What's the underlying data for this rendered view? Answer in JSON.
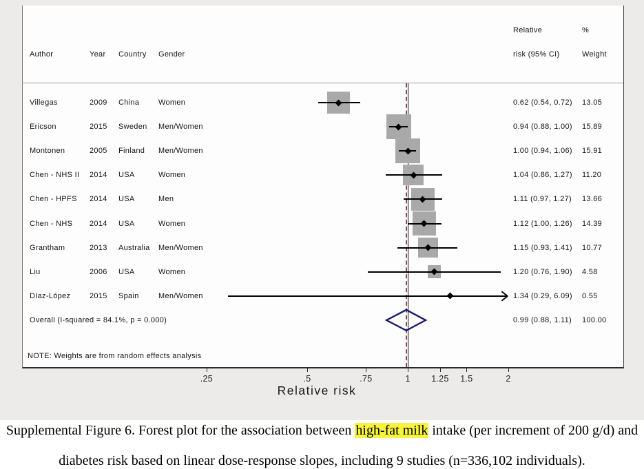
{
  "figure": {
    "header": {
      "author": "Author",
      "year": "Year",
      "country": "Country",
      "gender": "Gender",
      "rr_line1": "Relative",
      "rr_line2": "risk (95% CI)",
      "weight_line1": "%",
      "weight_line2": "Weight"
    },
    "note": "NOTE: Weights are from random effects analysis",
    "axis": {
      "label": "Relative risk",
      "ticks": [
        {
          "v": 0.25,
          "label": ".25"
        },
        {
          "v": 0.5,
          "label": ".5"
        },
        {
          "v": 0.75,
          "label": ".75"
        },
        {
          "v": 1,
          "label": "1"
        },
        {
          "v": 1.25,
          "label": "1.25"
        },
        {
          "v": 1.5,
          "label": "1.5"
        },
        {
          "v": 2,
          "label": "2"
        }
      ]
    }
  },
  "chart_data": {
    "type": "forest",
    "x_scale": "log",
    "ref_line": 1.0,
    "overall_line": 0.99,
    "columns": [
      "Author",
      "Year",
      "Country",
      "Gender",
      "Relative risk (95% CI)",
      "% Weight"
    ],
    "studies": [
      {
        "author": "Villegas",
        "year": "2009",
        "country": "China",
        "gender": "Women",
        "rr": 0.62,
        "ci_low": 0.54,
        "ci_high": 0.72,
        "rr_text": "0.62 (0.54, 0.72)",
        "weight": 13.05,
        "weight_text": "13.05"
      },
      {
        "author": "Ericson",
        "year": "2015",
        "country": "Sweden",
        "gender": "Men/Women",
        "rr": 0.94,
        "ci_low": 0.88,
        "ci_high": 1.0,
        "rr_text": "0.94 (0.88, 1.00)",
        "weight": 15.89,
        "weight_text": "15.89"
      },
      {
        "author": "Montonen",
        "year": "2005",
        "country": "Finland",
        "gender": "Men/Women",
        "rr": 1.0,
        "ci_low": 0.94,
        "ci_high": 1.06,
        "rr_text": "1.00 (0.94, 1.06)",
        "weight": 15.91,
        "weight_text": "15.91"
      },
      {
        "author": "Chen - NHS II",
        "year": "2014",
        "country": "USA",
        "gender": "Women",
        "rr": 1.04,
        "ci_low": 0.86,
        "ci_high": 1.27,
        "rr_text": "1.04 (0.86, 1.27)",
        "weight": 11.2,
        "weight_text": "11.20"
      },
      {
        "author": "Chen - HPFS",
        "year": "2014",
        "country": "USA",
        "gender": "Men",
        "rr": 1.11,
        "ci_low": 0.97,
        "ci_high": 1.27,
        "rr_text": "1.11 (0.97, 1.27)",
        "weight": 13.66,
        "weight_text": "13.66"
      },
      {
        "author": "Chen - NHS",
        "year": "2014",
        "country": "USA",
        "gender": "Women",
        "rr": 1.12,
        "ci_low": 1.0,
        "ci_high": 1.26,
        "rr_text": "1.12 (1.00, 1.26)",
        "weight": 14.39,
        "weight_text": "14.39"
      },
      {
        "author": "Grantham",
        "year": "2013",
        "country": "Australia",
        "gender": "Men/Women",
        "rr": 1.15,
        "ci_low": 0.93,
        "ci_high": 1.41,
        "rr_text": "1.15 (0.93, 1.41)",
        "weight": 10.77,
        "weight_text": "10.77"
      },
      {
        "author": "Liu",
        "year": "2006",
        "country": "USA",
        "gender": "Women",
        "rr": 1.2,
        "ci_low": 0.76,
        "ci_high": 1.9,
        "rr_text": "1.20 (0.76, 1.90)",
        "weight": 4.58,
        "weight_text": "4.58"
      },
      {
        "author": "Díaz-López",
        "year": "2015",
        "country": "Spain",
        "gender": "Men/Women",
        "rr": 1.34,
        "ci_low": 0.29,
        "ci_high": 6.09,
        "rr_text": "1.34 (0.29, 6.09)",
        "weight": 0.55,
        "weight_text": "0.55"
      }
    ],
    "overall": {
      "label": "Overall  (I-squared = 84.1%, p = 0.000)",
      "rr": 0.99,
      "ci_low": 0.88,
      "ci_high": 1.11,
      "rr_text": "0.99 (0.88, 1.11)",
      "weight_text": "100.00"
    }
  },
  "caption": {
    "line1_pre": "Supplemental Figure 6. Forest plot for the association between ",
    "line1_highlight": "high-fat milk",
    "line1_post": " intake (per increment of 200 g/d) and",
    "line2": "diabetes risk based on linear dose-response slopes, including 9 studies (n=336,102 individuals)."
  },
  "colors": {
    "background": "#ecebe9",
    "plot_background": "#fdfdfd",
    "weight_square": "#a9a9a9",
    "ci_line": "#000000",
    "diamond": "#1b1b6f",
    "overall_dashed_line": "#8b4a48",
    "ref_line": "#0a0a0a",
    "highlight": "#f7f33f"
  }
}
